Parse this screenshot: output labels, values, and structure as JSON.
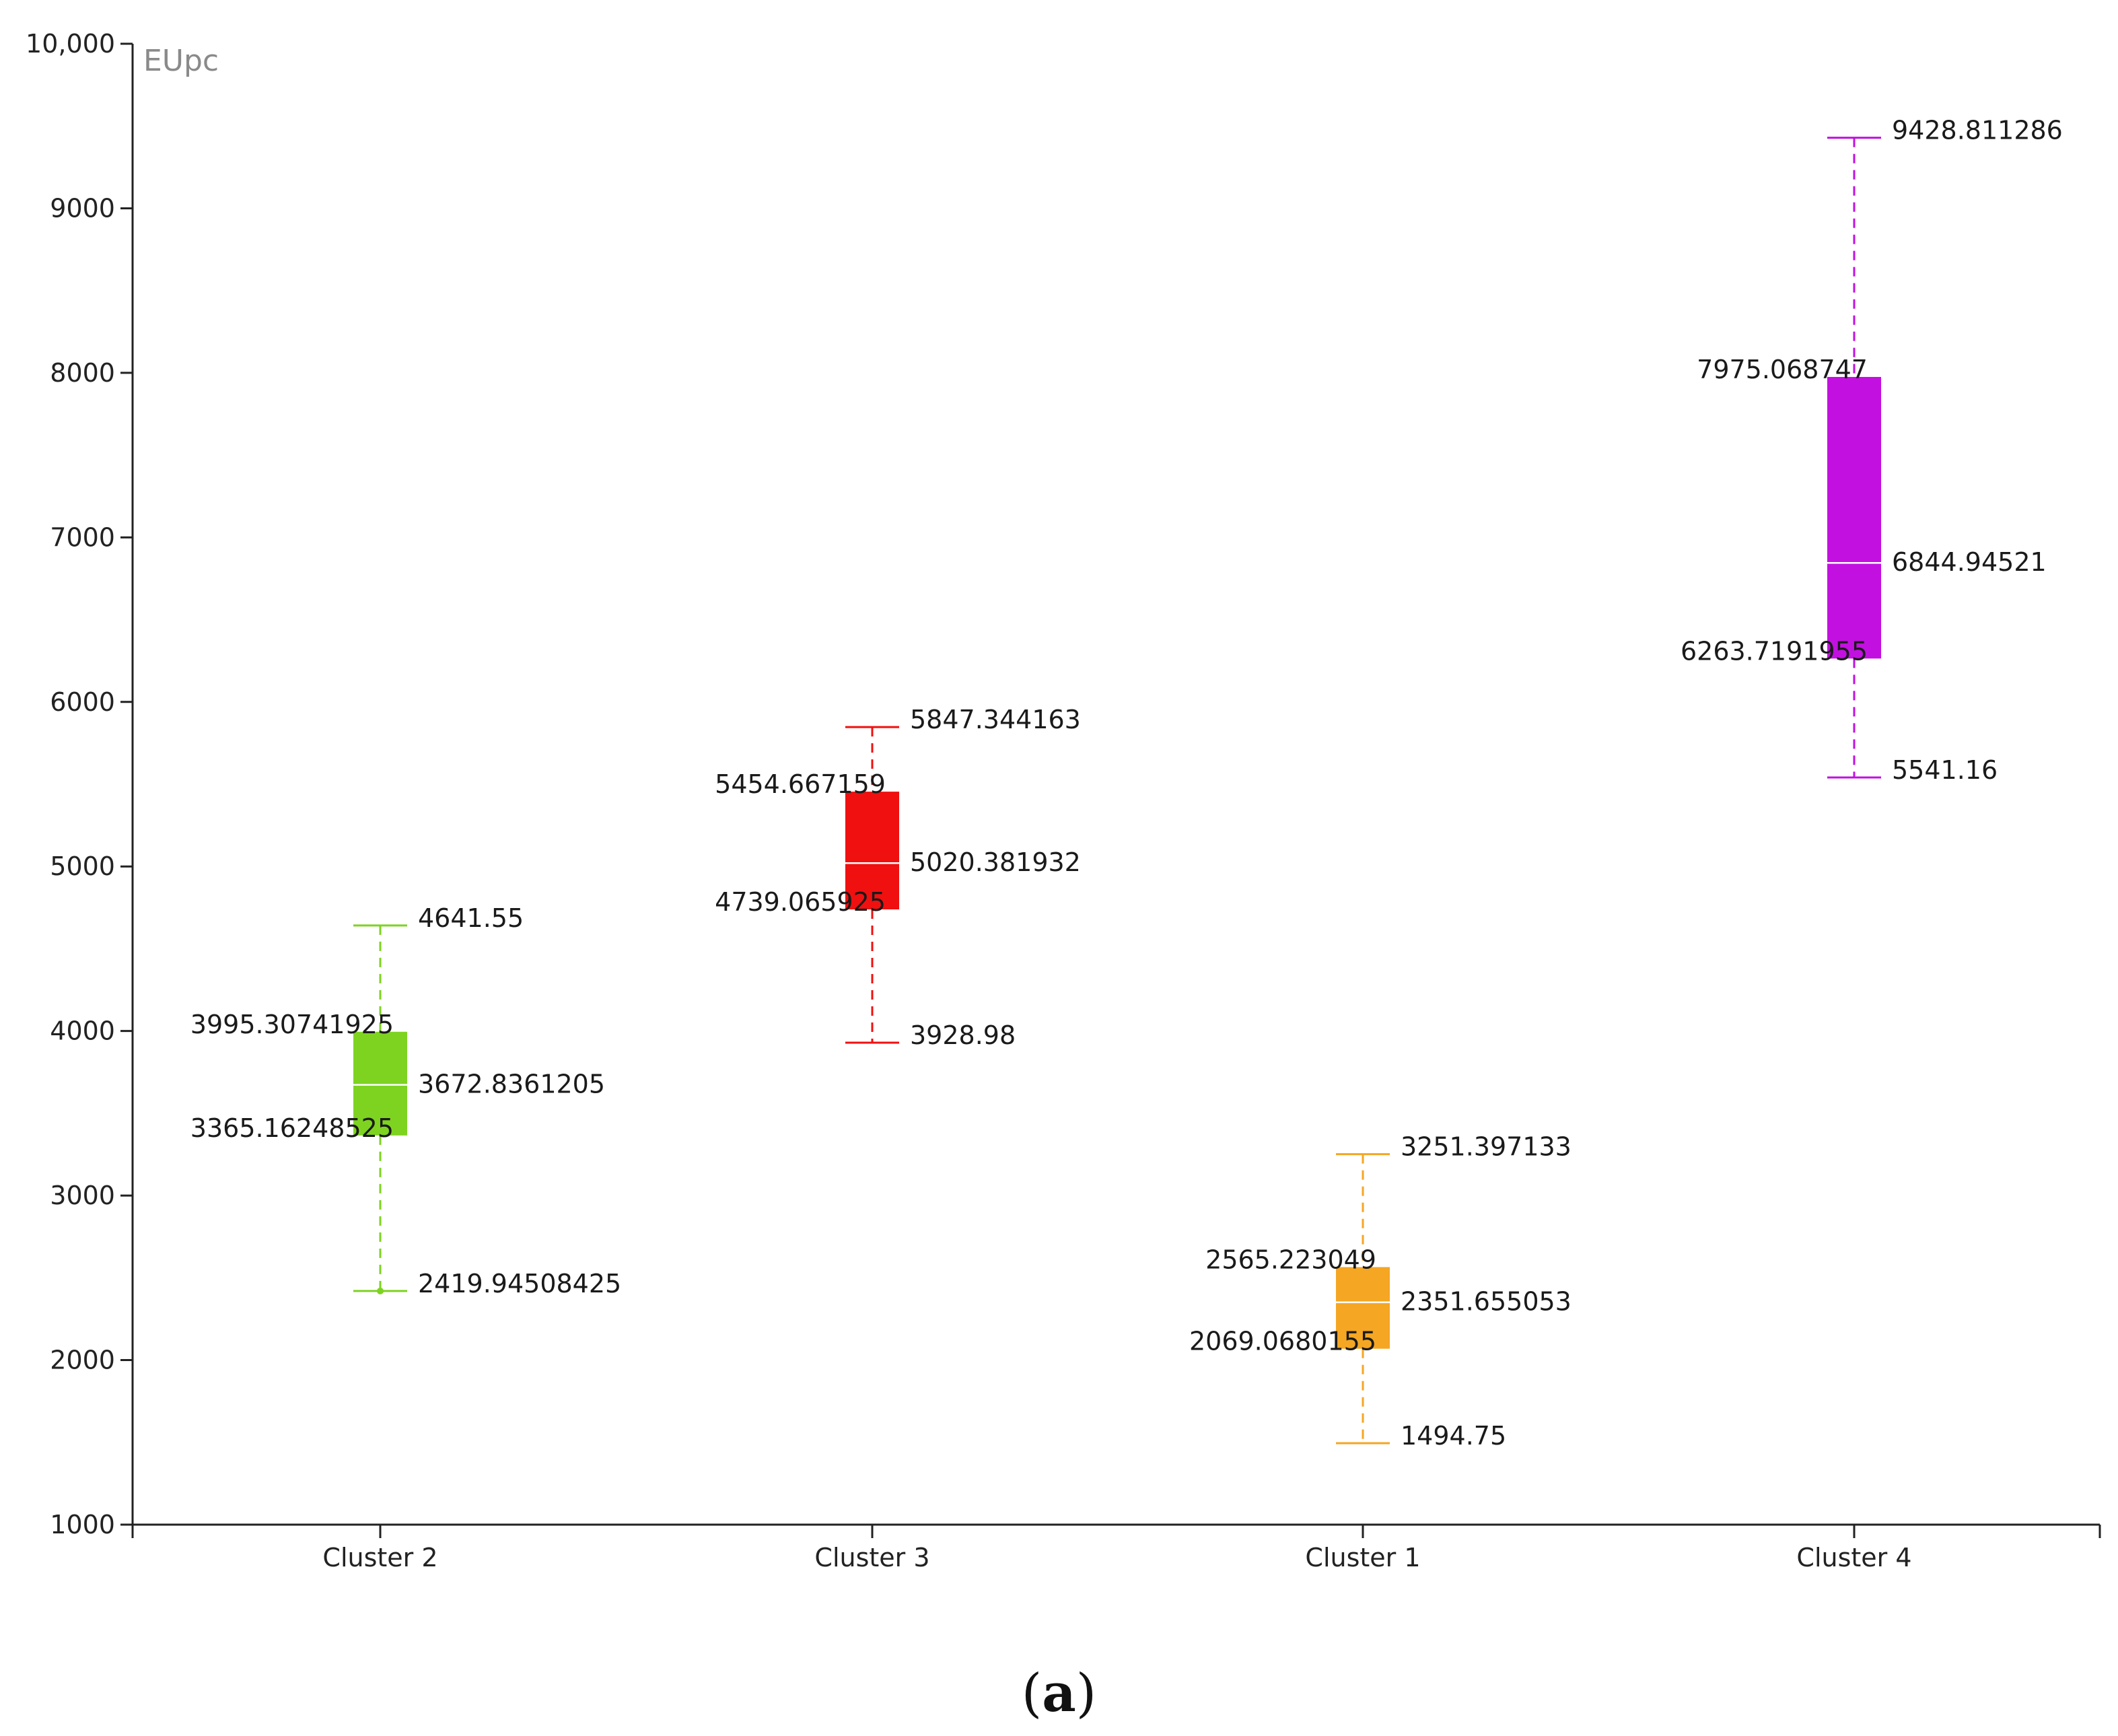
{
  "chart_data": {
    "type": "boxplot",
    "unit": "EUpc",
    "ylim": [
      1000,
      10000
    ],
    "yticks": [
      {
        "v": 1000,
        "label": "1000"
      },
      {
        "v": 2000,
        "label": "2000"
      },
      {
        "v": 3000,
        "label": "3000"
      },
      {
        "v": 4000,
        "label": "4000"
      },
      {
        "v": 5000,
        "label": "5000"
      },
      {
        "v": 6000,
        "label": "6000"
      },
      {
        "v": 7000,
        "label": "7000"
      },
      {
        "v": 8000,
        "label": "8000"
      },
      {
        "v": 9000,
        "label": "9000"
      },
      {
        "v": 10000,
        "label": "10,000"
      }
    ],
    "categories": [
      "Cluster 2",
      "Cluster 3",
      "Cluster 1",
      "Cluster 4"
    ],
    "boxes": [
      {
        "name": "Cluster 2",
        "color": "#7ed321",
        "min": 2419.94508425,
        "q1": 3365.16248525,
        "median": 3672.8361205,
        "q3": 3995.30741925,
        "max": 4641.55,
        "labels": {
          "min": "2419.94508425",
          "q1": "3365.16248525",
          "median": "3672.8361205",
          "q3": "3995.30741925",
          "max": "4641.55"
        }
      },
      {
        "name": "Cluster 3",
        "color": "#f01010",
        "min": 3928.98,
        "q1": 4739.065925,
        "median": 5020.381932,
        "q3": 5454.667159,
        "max": 5847.344163,
        "labels": {
          "min": "3928.98",
          "q1": "4739.065925",
          "median": "5020.381932",
          "q3": "5454.667159",
          "max": "5847.344163"
        }
      },
      {
        "name": "Cluster 1",
        "color": "#f5a623",
        "min": 1494.75,
        "q1": 2069.0680155,
        "median": 2351.655053,
        "q3": 2565.223049,
        "max": 3251.397133,
        "labels": {
          "min": "1494.75",
          "q1": "2069.0680155",
          "median": "2351.655053",
          "q3": "2565.223049",
          "max": "3251.397133"
        }
      },
      {
        "name": "Cluster 4",
        "color": "#c210e0",
        "min": 5541.16,
        "q1": 6263.7191955,
        "median": 6844.94521,
        "q3": 7975.068747,
        "max": 9428.811286,
        "labels": {
          "min": "5541.16",
          "q1": "6263.7191955",
          "median": "6844.94521",
          "q3": "7975.068747",
          "max": "9428.811286"
        }
      }
    ]
  },
  "caption": {
    "open": "(",
    "letter": "a",
    "close": ")"
  }
}
